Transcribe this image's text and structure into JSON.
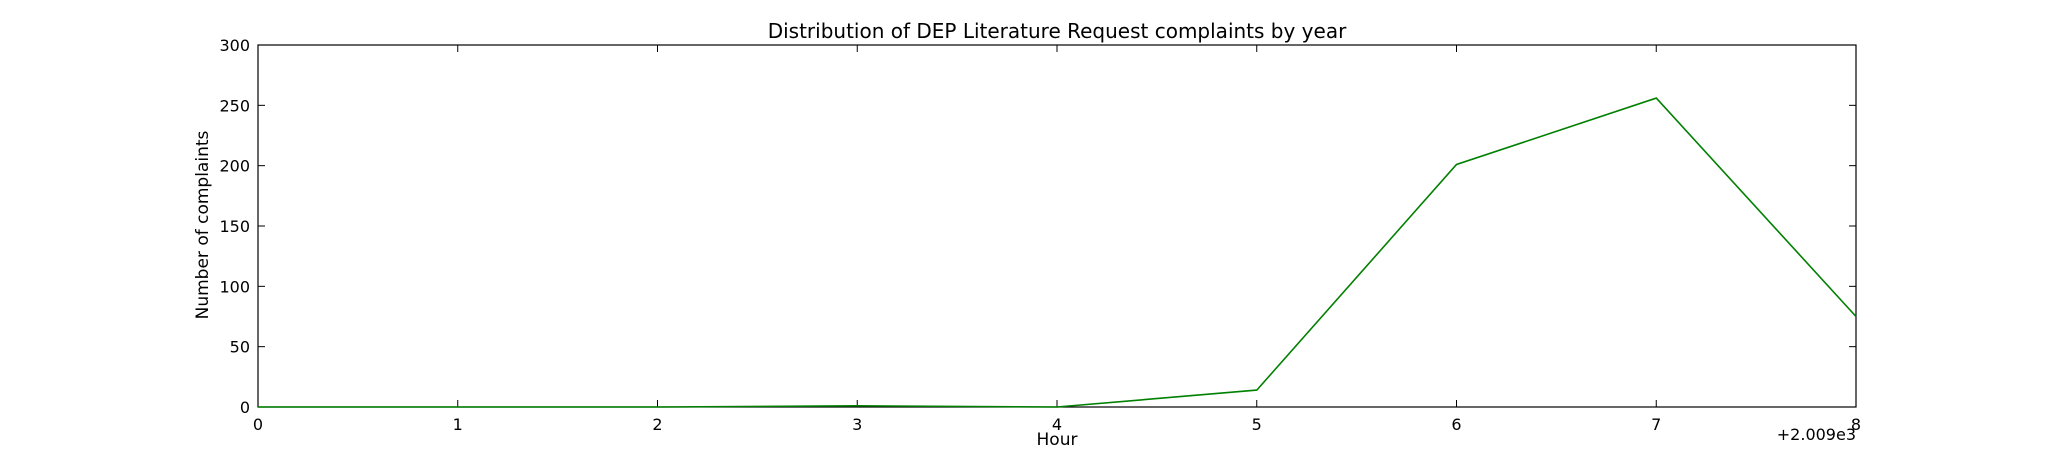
{
  "chart_data": {
    "type": "line",
    "title": "Distribution of  DEP Literature Request complaints by year",
    "xlabel": "Hour",
    "ylabel": "Number of complaints",
    "x_offset_label": "+2.009e3",
    "x": [
      0,
      1,
      2,
      3,
      4,
      5,
      6,
      7,
      8
    ],
    "series": [
      {
        "values": [
          0,
          0,
          0,
          1,
          0,
          14,
          201,
          256,
          75
        ],
        "color": "#008000"
      }
    ],
    "xlim": [
      0,
      8
    ],
    "ylim": [
      0,
      300
    ],
    "xticks": [
      "0",
      "1",
      "2",
      "3",
      "4",
      "5",
      "6",
      "7",
      "8"
    ],
    "yticks": [
      "0",
      "50",
      "100",
      "150",
      "200",
      "250",
      "300"
    ],
    "grid": false,
    "legend": "none"
  }
}
